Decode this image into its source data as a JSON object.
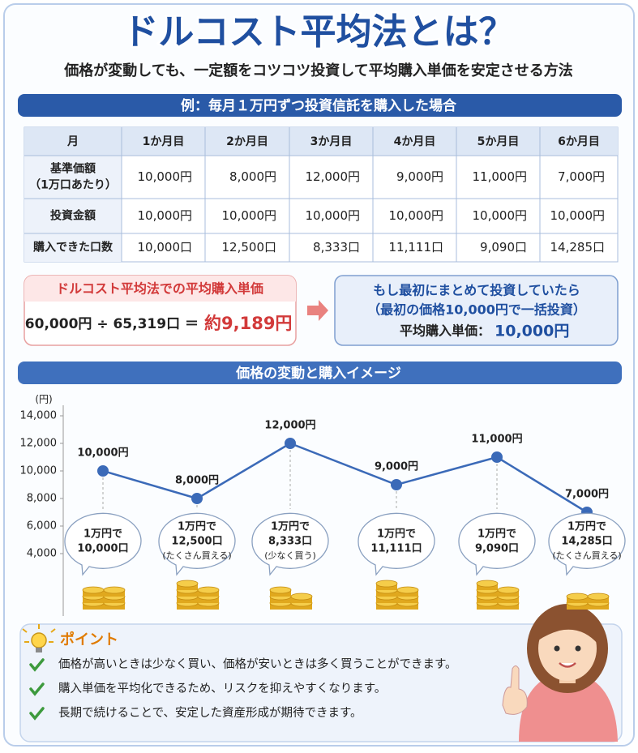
{
  "header": {
    "title": "ドルコスト平均法とは？",
    "subtitle": "価格が変動しても、一定額をコツコツ投資して平均購入単価を安定させる方法"
  },
  "example": {
    "heading": "例：毎月１万円ずつ投資信託を購入した場合",
    "table": {
      "columns": [
        "月",
        "1か月目",
        "2か月目",
        "3か月目",
        "4か月目",
        "5か月目",
        "6か月目"
      ],
      "rows": [
        {
          "label": [
            "基準価額",
            "（1万口あたり）"
          ],
          "cells": [
            "10,000円",
            "8,000円",
            "12,000円",
            "9,000円",
            "11,000円",
            "7,000円"
          ]
        },
        {
          "label": [
            "投資金額"
          ],
          "cells": [
            "10,000円",
            "10,000円",
            "10,000円",
            "10,000円",
            "10,000円",
            "10,000円"
          ]
        },
        {
          "label": [
            "購入できた口数"
          ],
          "cells": [
            "10,000口",
            "12,500口",
            "8,333口",
            "11,111口",
            "9,090口",
            "14,285口"
          ]
        }
      ]
    }
  },
  "average": {
    "title": "ドルコスト平均法での平均購入単価",
    "formula": "60,000円 ÷ 65,319口 ＝",
    "result": "約9,189円"
  },
  "lump_sum": {
    "lines": [
      "もし最初にまとめて投資していたら",
      "（最初の価格10,000円で一括投資）"
    ],
    "label": "平均購入単価：",
    "value": "10,000円"
  },
  "chart_data": {
    "type": "line",
    "title": "価格の変動と購入イメージ",
    "y_unit": "(円)",
    "categories": [
      null,
      null,
      null,
      null,
      null,
      null
    ],
    "series": [
      {
        "color": "#3b6ab8",
        "values": [
          10000,
          8000,
          12000,
          9000,
          11000,
          7000
        ],
        "value_labels": [
          "10,000円",
          "8,000円",
          "12,000円",
          "9,000円",
          "11,000円",
          "7,000円"
        ]
      }
    ],
    "ylim": [
      0,
      15000
    ],
    "yticks": [
      {
        "value": 4000,
        "label": "4,000"
      },
      {
        "value": 6000,
        "label": "6,000"
      },
      {
        "value": 8000,
        "label": "8,000"
      },
      {
        "value": 10000,
        "label": "10,000"
      },
      {
        "value": 12000,
        "label": "12,000"
      },
      {
        "value": 14000,
        "label": "14,000"
      }
    ],
    "annotations": [
      {
        "lines": [
          "1万円で",
          "10,000口"
        ]
      },
      {
        "lines": [
          "1万円で",
          "12,500口",
          "(たくさん買える)"
        ]
      },
      {
        "lines": [
          "1万円で",
          "8,333口",
          "(少なく買う)"
        ]
      },
      {
        "lines": [
          "1万円で",
          "11,111口"
        ]
      },
      {
        "lines": [
          "1万円で",
          "9,090口"
        ]
      },
      {
        "lines": [
          "1万円で",
          "14,285口",
          "(たくさん買える)"
        ]
      }
    ]
  },
  "points": {
    "title": "ポイント",
    "items": [
      "価格が高いときは少なく買い、価格が安いときは多く買うことができます。",
      "購入単価を平均化できるため、リスクを抑えやすくなります。",
      "長期で続けることで、安定した資産形成が期待できます。"
    ]
  }
}
